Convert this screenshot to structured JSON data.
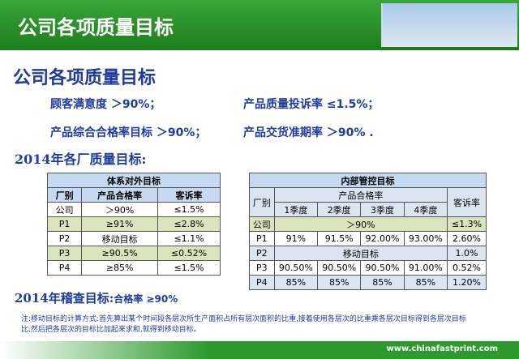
{
  "header": {
    "title": "公司各项质量目标"
  },
  "subtitle": "公司各项质量目标",
  "goals": [
    {
      "label": "顾客满意度",
      "value": "＞90%；"
    },
    {
      "label": "产品质量投诉率",
      "value": "≤1.5%；"
    },
    {
      "label": "产品综合合格率目标",
      "value": "＞90%；"
    },
    {
      "label": "产品交货准期率",
      "value": "＞90%  ."
    }
  ],
  "section_title": "2014年各厂质量目标:",
  "table_left": {
    "title": "体系对外目标",
    "header": [
      "厂别",
      "产品合格率",
      "客诉率"
    ],
    "rows": [
      [
        "公司",
        "＞90%",
        "≤1.5%"
      ],
      [
        "P1",
        "≥91%",
        "≤2.8%"
      ],
      [
        "P2",
        "移动目标",
        "≤1.1%"
      ],
      [
        "P3",
        "≥90.5%",
        "≤0.52%"
      ],
      [
        "P4",
        "≥85%",
        "≤1.5%"
      ]
    ]
  },
  "table_right": {
    "title": "内部管控目标",
    "header": [
      "厂别",
      "产品合格率",
      "客诉率"
    ],
    "subheader": [
      "1季度",
      "2季度",
      "3季度",
      "4季度"
    ],
    "rows": [
      [
        "公司",
        "＞90%",
        "≤1.3%"
      ],
      [
        "P1",
        "91%",
        "91.5%",
        "92.00%",
        "93.00%",
        "2.60%"
      ],
      [
        "P2",
        "移动目标",
        "1.0%"
      ],
      [
        "P3",
        "90.50%",
        "90.50%",
        "90.50%",
        "91.00%",
        "0.52%"
      ],
      [
        "P4",
        "85%",
        "85%",
        "85%",
        "85%",
        "1.20%"
      ]
    ]
  },
  "audit": {
    "label": "2014年稽查目标:",
    "value": "合格率 ≥90%"
  },
  "note": "注:移动目标的计算方式:首先算出某个时间段各层次所生产面积占所有层次面积的比重,接着使用各层次的比重乘各层次目标得到各层次目标比,然后把各层次的目标比加起来求和,就得到移动目标。",
  "footer": "www.chinafastprint.com"
}
